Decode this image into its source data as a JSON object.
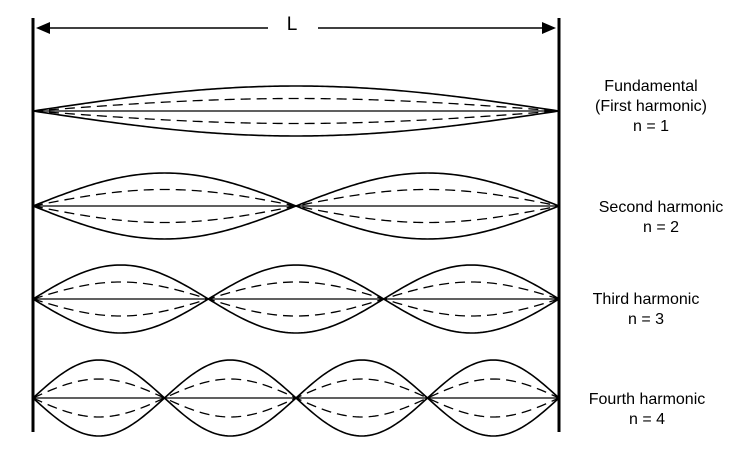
{
  "length_label": "L",
  "harmonics": [
    {
      "n": 1,
      "name_lines": [
        "Fundamental",
        "(First harmonic)"
      ],
      "n_label": "n = 1"
    },
    {
      "n": 2,
      "name_lines": [
        "Second harmonic"
      ],
      "n_label": "n = 2"
    },
    {
      "n": 3,
      "name_lines": [
        "Third harmonic"
      ],
      "n_label": "n = 3"
    },
    {
      "n": 4,
      "name_lines": [
        "Fourth harmonic"
      ],
      "n_label": "n = 4"
    }
  ]
}
